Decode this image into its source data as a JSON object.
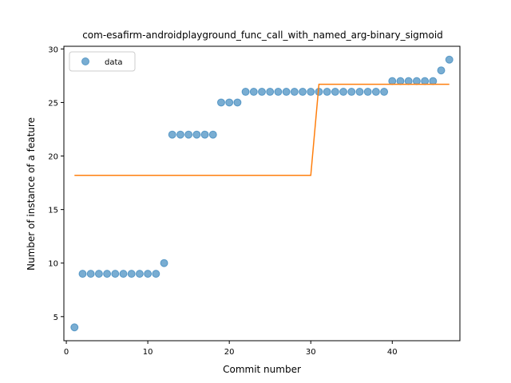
{
  "chart_data": {
    "type": "scatter",
    "title": "com-esafirm-androidplayground_func_call_with_named_arg-binary_sigmoid",
    "xlabel": "Commit number",
    "ylabel": "Number of instance of a feature",
    "xlim": [
      -0.3,
      48.3
    ],
    "ylim": [
      2.75,
      30.25
    ],
    "xticks": [
      0,
      10,
      20,
      30,
      40
    ],
    "yticks": [
      5,
      10,
      15,
      20,
      25,
      30
    ],
    "grid": false,
    "legend_position": "top-left",
    "series": [
      {
        "name": "data",
        "kind": "points",
        "color": "#1f77b4",
        "x": [
          1,
          2,
          3,
          4,
          5,
          6,
          7,
          8,
          9,
          10,
          11,
          12,
          13,
          14,
          15,
          16,
          17,
          18,
          19,
          20,
          21,
          22,
          23,
          24,
          25,
          26,
          27,
          28,
          29,
          30,
          31,
          32,
          33,
          34,
          35,
          36,
          37,
          38,
          39,
          40,
          41,
          42,
          43,
          44,
          45,
          46,
          47
        ],
        "y": [
          4,
          9,
          9,
          9,
          9,
          9,
          9,
          9,
          9,
          9,
          9,
          10,
          22,
          22,
          22,
          22,
          22,
          22,
          25,
          25,
          25,
          26,
          26,
          26,
          26,
          26,
          26,
          26,
          26,
          26,
          26,
          26,
          26,
          26,
          26,
          26,
          26,
          26,
          26,
          27,
          27,
          27,
          27,
          27,
          27,
          28,
          29
        ]
      },
      {
        "kind": "step-line",
        "color": "#ff7f0e",
        "x": [
          1,
          30,
          31,
          47
        ],
        "y": [
          18.2,
          18.2,
          26.7,
          26.7
        ]
      }
    ]
  }
}
